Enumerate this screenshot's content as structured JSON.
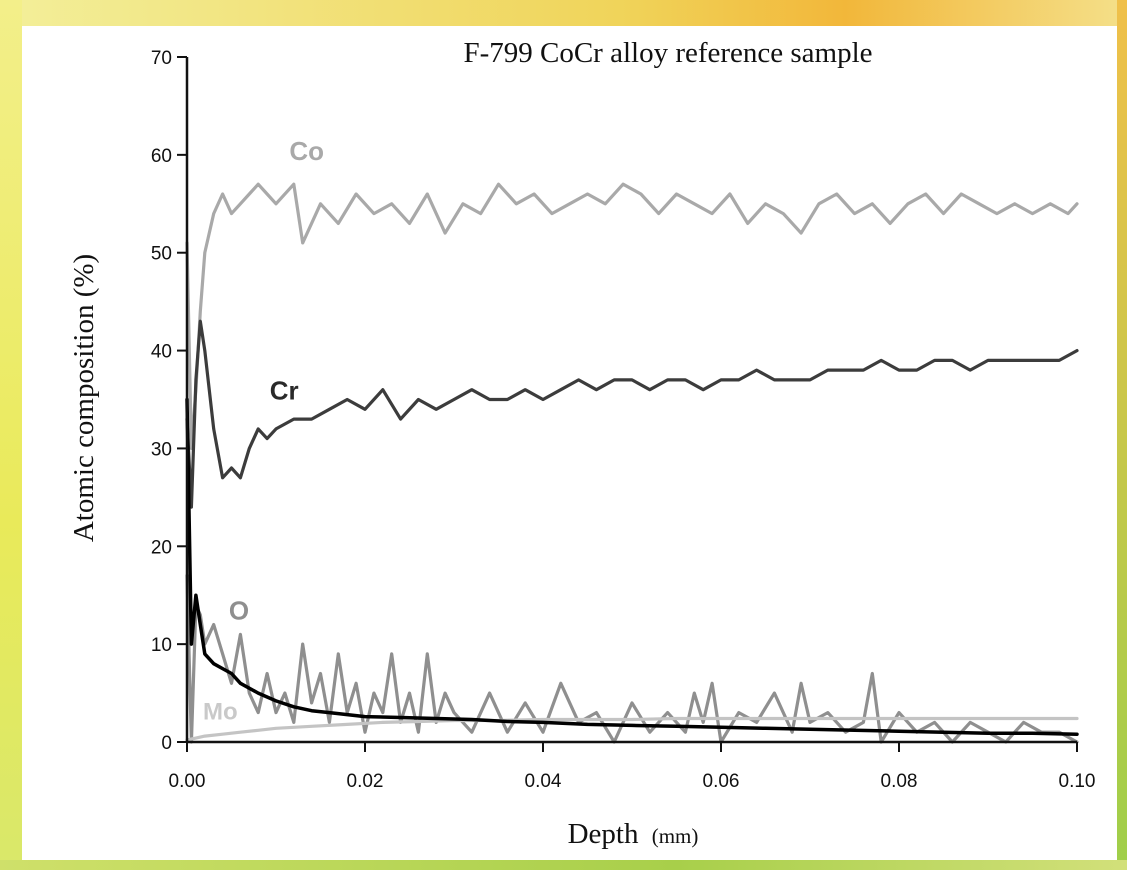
{
  "chart_data": {
    "type": "line",
    "title": "F-799 CoCr alloy reference sample",
    "xlabel": "Depth",
    "xunit": "(mm)",
    "ylabel": "Atomic composition (%)",
    "xlim": [
      0,
      0.1
    ],
    "ylim": [
      0,
      70
    ],
    "xticks": [
      "0.00",
      "0.02",
      "0.04",
      "0.06",
      "0.08",
      "0.10"
    ],
    "yticks": [
      "0",
      "10",
      "20",
      "30",
      "40",
      "50",
      "60",
      "70"
    ],
    "grid": false,
    "series": [
      {
        "name": "Co",
        "color": "#a9a9a9",
        "label_weight": "bold",
        "x": [
          0.0,
          0.0005,
          0.001,
          0.0015,
          0.002,
          0.003,
          0.004,
          0.005,
          0.006,
          0.007,
          0.008,
          0.009,
          0.01,
          0.012,
          0.013,
          0.015,
          0.017,
          0.019,
          0.021,
          0.023,
          0.025,
          0.027,
          0.029,
          0.031,
          0.033,
          0.035,
          0.037,
          0.039,
          0.041,
          0.043,
          0.045,
          0.047,
          0.049,
          0.051,
          0.053,
          0.055,
          0.057,
          0.059,
          0.061,
          0.063,
          0.065,
          0.067,
          0.069,
          0.071,
          0.073,
          0.075,
          0.077,
          0.079,
          0.081,
          0.083,
          0.085,
          0.087,
          0.089,
          0.091,
          0.093,
          0.095,
          0.097,
          0.099,
          0.1
        ],
        "y": [
          51,
          30,
          36,
          44,
          50,
          54,
          56,
          54,
          55,
          56,
          57,
          56,
          55,
          57,
          51,
          55,
          53,
          56,
          54,
          55,
          53,
          56,
          52,
          55,
          54,
          57,
          55,
          56,
          54,
          55,
          56,
          55,
          57,
          56,
          54,
          56,
          55,
          54,
          56,
          53,
          55,
          54,
          52,
          55,
          56,
          54,
          55,
          53,
          55,
          56,
          54,
          56,
          55,
          54,
          55,
          54,
          55,
          54,
          55
        ]
      },
      {
        "name": "Cr",
        "color": "#3c3c3c",
        "label_weight": "bold",
        "x": [
          0.0,
          0.0005,
          0.001,
          0.0015,
          0.002,
          0.003,
          0.004,
          0.005,
          0.006,
          0.007,
          0.008,
          0.009,
          0.01,
          0.012,
          0.014,
          0.016,
          0.018,
          0.02,
          0.022,
          0.024,
          0.026,
          0.028,
          0.03,
          0.032,
          0.034,
          0.036,
          0.038,
          0.04,
          0.042,
          0.044,
          0.046,
          0.048,
          0.05,
          0.052,
          0.054,
          0.056,
          0.058,
          0.06,
          0.062,
          0.064,
          0.066,
          0.068,
          0.07,
          0.072,
          0.074,
          0.076,
          0.078,
          0.08,
          0.082,
          0.084,
          0.086,
          0.088,
          0.09,
          0.092,
          0.094,
          0.096,
          0.098,
          0.1
        ],
        "y": [
          33,
          24,
          37,
          43,
          40,
          32,
          27,
          28,
          27,
          30,
          32,
          31,
          32,
          33,
          33,
          34,
          35,
          34,
          36,
          33,
          35,
          34,
          35,
          36,
          35,
          35,
          36,
          35,
          36,
          37,
          36,
          37,
          37,
          36,
          37,
          37,
          36,
          37,
          37,
          38,
          37,
          37,
          37,
          38,
          38,
          38,
          39,
          38,
          38,
          39,
          39,
          38,
          39,
          39,
          39,
          39,
          39,
          40
        ]
      },
      {
        "name": "O",
        "color": "#8f8f8f",
        "label_weight": "bold",
        "x": [
          0.0,
          0.0005,
          0.001,
          0.0015,
          0.002,
          0.003,
          0.004,
          0.005,
          0.006,
          0.007,
          0.008,
          0.009,
          0.01,
          0.011,
          0.012,
          0.013,
          0.014,
          0.015,
          0.016,
          0.017,
          0.018,
          0.019,
          0.02,
          0.021,
          0.022,
          0.023,
          0.024,
          0.025,
          0.026,
          0.027,
          0.028,
          0.029,
          0.03,
          0.032,
          0.034,
          0.036,
          0.038,
          0.04,
          0.042,
          0.044,
          0.046,
          0.048,
          0.05,
          0.052,
          0.054,
          0.056,
          0.057,
          0.058,
          0.059,
          0.06,
          0.062,
          0.064,
          0.066,
          0.068,
          0.069,
          0.07,
          0.072,
          0.074,
          0.076,
          0.077,
          0.078,
          0.08,
          0.082,
          0.084,
          0.086,
          0.088,
          0.09,
          0.092,
          0.094,
          0.096,
          0.098,
          0.1
        ],
        "y": [
          17,
          0,
          14,
          13,
          10,
          12,
          9,
          6,
          11,
          5,
          3,
          7,
          3,
          5,
          2,
          10,
          4,
          7,
          2,
          9,
          3,
          6,
          1,
          5,
          3,
          9,
          2,
          5,
          1,
          9,
          2,
          5,
          3,
          1,
          5,
          1,
          4,
          1,
          6,
          2,
          3,
          0,
          4,
          1,
          3,
          1,
          5,
          2,
          6,
          0,
          3,
          2,
          5,
          1,
          6,
          2,
          3,
          1,
          2,
          7,
          0,
          3,
          1,
          2,
          0,
          2,
          1,
          0,
          2,
          1,
          1,
          0
        ]
      },
      {
        "name": "Mo",
        "color": "#c4c4c4",
        "label_weight": "bold",
        "x": [
          0.0,
          0.001,
          0.002,
          0.004,
          0.006,
          0.008,
          0.01,
          0.014,
          0.018,
          0.022,
          0.026,
          0.03,
          0.035,
          0.04,
          0.045,
          0.05,
          0.055,
          0.06,
          0.065,
          0.07,
          0.075,
          0.08,
          0.085,
          0.09,
          0.095,
          0.1
        ],
        "y": [
          0.2,
          0.4,
          0.6,
          0.8,
          1.0,
          1.2,
          1.4,
          1.6,
          1.8,
          2.0,
          2.1,
          2.2,
          2.2,
          2.3,
          2.3,
          2.3,
          2.4,
          2.4,
          2.4,
          2.4,
          2.4,
          2.4,
          2.4,
          2.4,
          2.4,
          2.4
        ]
      },
      {
        "name": "",
        "color": "#000000",
        "x": [
          0.0,
          0.0005,
          0.001,
          0.0015,
          0.002,
          0.003,
          0.004,
          0.005,
          0.006,
          0.008,
          0.01,
          0.012,
          0.014,
          0.016,
          0.018,
          0.02,
          0.024,
          0.028,
          0.032,
          0.036,
          0.04,
          0.045,
          0.05,
          0.055,
          0.06,
          0.065,
          0.07,
          0.075,
          0.08,
          0.085,
          0.09,
          0.095,
          0.1
        ],
        "y": [
          35,
          10,
          15,
          12,
          9,
          8,
          7.5,
          7,
          6,
          5,
          4.2,
          3.6,
          3.2,
          3.0,
          2.8,
          2.6,
          2.5,
          2.4,
          2.3,
          2.1,
          2.0,
          1.8,
          1.7,
          1.6,
          1.5,
          1.4,
          1.3,
          1.2,
          1.1,
          1.0,
          0.9,
          0.9,
          0.8
        ]
      }
    ]
  }
}
